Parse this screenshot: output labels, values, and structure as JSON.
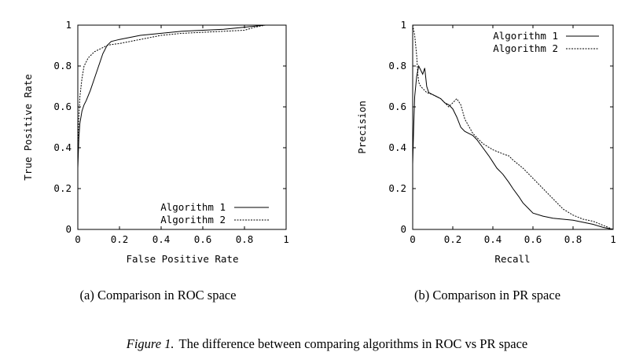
{
  "chart_data": [
    {
      "type": "line",
      "xlabel": "False Positive Rate",
      "ylabel": "True Positive Rate",
      "xlim": [
        0,
        1
      ],
      "ylim": [
        0,
        1
      ],
      "xticks": [
        "0",
        "0.2",
        "0.4",
        "0.6",
        "0.8",
        "1"
      ],
      "yticks": [
        "0",
        "0.2",
        "0.4",
        "0.6",
        "0.8",
        "1"
      ],
      "legend_position": "bottom-right",
      "caption": "(a) Comparison in ROC space",
      "series": [
        {
          "name": "Algorithm 1",
          "style": "solid",
          "x": [
            0.0,
            0.0,
            0.005,
            0.01,
            0.02,
            0.03,
            0.04,
            0.06,
            0.08,
            0.1,
            0.12,
            0.14,
            0.16,
            0.2,
            0.25,
            0.3,
            0.4,
            0.5,
            0.6,
            0.7,
            0.8,
            0.85,
            0.9,
            0.95,
            1.0
          ],
          "y": [
            0.0,
            0.3,
            0.45,
            0.52,
            0.58,
            0.61,
            0.63,
            0.68,
            0.74,
            0.8,
            0.86,
            0.9,
            0.92,
            0.93,
            0.94,
            0.95,
            0.96,
            0.97,
            0.975,
            0.98,
            0.99,
            0.995,
            1.0,
            1.0,
            1.0
          ]
        },
        {
          "name": "Algorithm 2",
          "style": "dashed",
          "x": [
            0.0,
            0.0,
            0.005,
            0.01,
            0.02,
            0.03,
            0.05,
            0.08,
            0.1,
            0.12,
            0.14,
            0.16,
            0.2,
            0.3,
            0.4,
            0.5,
            0.6,
            0.7,
            0.8,
            0.85,
            0.9,
            0.95,
            1.0
          ],
          "y": [
            0.0,
            0.4,
            0.55,
            0.65,
            0.74,
            0.8,
            0.84,
            0.87,
            0.88,
            0.89,
            0.9,
            0.905,
            0.91,
            0.93,
            0.95,
            0.96,
            0.965,
            0.97,
            0.975,
            0.99,
            1.0,
            1.0,
            1.0
          ]
        }
      ]
    },
    {
      "type": "line",
      "xlabel": "Recall",
      "ylabel": "Precision",
      "xlim": [
        0,
        1
      ],
      "ylim": [
        0,
        1
      ],
      "xticks": [
        "0",
        "0.2",
        "0.4",
        "0.6",
        "0.8",
        "1"
      ],
      "yticks": [
        "0",
        "0.2",
        "0.4",
        "0.6",
        "0.8",
        "1"
      ],
      "legend_position": "top-right",
      "caption": "(b) Comparison in PR space",
      "series": [
        {
          "name": "Algorithm 1",
          "style": "solid",
          "x": [
            0.0,
            0.005,
            0.01,
            0.02,
            0.03,
            0.05,
            0.06,
            0.07,
            0.08,
            0.1,
            0.12,
            0.14,
            0.16,
            0.18,
            0.2,
            0.22,
            0.24,
            0.26,
            0.28,
            0.3,
            0.32,
            0.35,
            0.38,
            0.4,
            0.42,
            0.45,
            0.48,
            0.5,
            0.53,
            0.55,
            0.58,
            0.6,
            0.65,
            0.7,
            0.75,
            0.8,
            0.85,
            0.9,
            0.95,
            1.0
          ],
          "y": [
            0.32,
            0.5,
            0.65,
            0.75,
            0.8,
            0.76,
            0.79,
            0.7,
            0.67,
            0.66,
            0.65,
            0.64,
            0.62,
            0.61,
            0.59,
            0.55,
            0.5,
            0.48,
            0.47,
            0.46,
            0.44,
            0.4,
            0.36,
            0.33,
            0.3,
            0.27,
            0.23,
            0.2,
            0.16,
            0.13,
            0.1,
            0.08,
            0.065,
            0.055,
            0.05,
            0.045,
            0.035,
            0.025,
            0.01,
            0.0
          ]
        },
        {
          "name": "Algorithm 2",
          "style": "dashed",
          "x": [
            0.0,
            0.01,
            0.02,
            0.025,
            0.03,
            0.04,
            0.05,
            0.07,
            0.1,
            0.12,
            0.14,
            0.16,
            0.18,
            0.2,
            0.22,
            0.24,
            0.26,
            0.3,
            0.35,
            0.4,
            0.45,
            0.48,
            0.5,
            0.55,
            0.6,
            0.65,
            0.7,
            0.75,
            0.8,
            0.85,
            0.9,
            0.95,
            1.0
          ],
          "y": [
            1.0,
            0.95,
            0.85,
            0.77,
            0.72,
            0.7,
            0.69,
            0.67,
            0.66,
            0.65,
            0.64,
            0.62,
            0.6,
            0.62,
            0.64,
            0.61,
            0.54,
            0.47,
            0.42,
            0.39,
            0.37,
            0.36,
            0.34,
            0.3,
            0.25,
            0.2,
            0.15,
            0.1,
            0.07,
            0.05,
            0.04,
            0.02,
            0.0
          ]
        }
      ]
    }
  ],
  "figure_caption": {
    "prefix": "Figure 1.",
    "text": "The difference between comparing algorithms in ROC vs PR space"
  }
}
